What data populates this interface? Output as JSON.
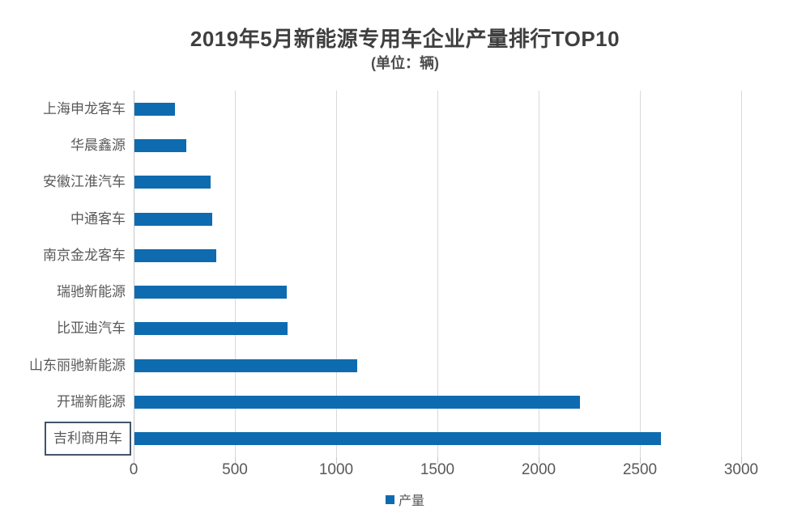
{
  "chart": {
    "title": "2019年5月新能源专用车企业产量排行TOP10",
    "subtitle": "(单位：辆)",
    "legend_label": "产量"
  },
  "chart_data": {
    "type": "bar",
    "orientation": "horizontal",
    "title": "2019年5月新能源专用车企业产量排行TOP10",
    "subtitle": "(单位：辆)",
    "categories": [
      "上海申龙客车",
      "华晨鑫源",
      "安徽江淮汽车",
      "中通客车",
      "南京金龙客车",
      "瑞驰新能源",
      "比亚迪汽车",
      "山东丽驰新能源",
      "开瑞新能源",
      "吉利商用车"
    ],
    "series": [
      {
        "name": "产量",
        "values": [
          200,
          255,
          375,
          385,
          405,
          750,
          755,
          1100,
          2200,
          2600
        ]
      }
    ],
    "boxed_category": "吉利商用车",
    "x_ticks": [
      0,
      500,
      1000,
      1500,
      2000,
      2500,
      3000
    ],
    "xlim": [
      0,
      3180
    ],
    "grid": true,
    "legend_position": "bottom",
    "colors": {
      "bar": "#0E6BB0",
      "grid": "#D9D9D9",
      "axis": "#C6C6C6",
      "title_text": "#3F3F3F",
      "label_text": "#595959",
      "box_border": "#44546A"
    }
  }
}
